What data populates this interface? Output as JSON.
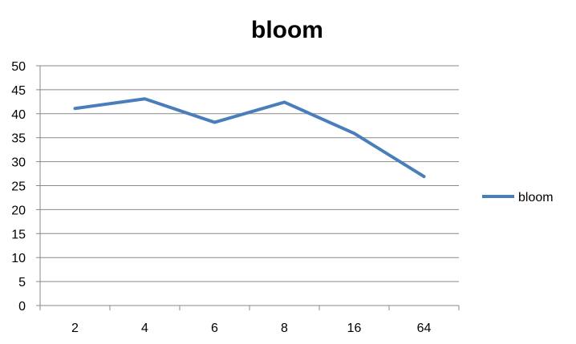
{
  "chart_data": {
    "type": "line",
    "title": "bloom",
    "xlabel": "",
    "ylabel": "",
    "categories": [
      "2",
      "4",
      "6",
      "8",
      "16",
      "64"
    ],
    "series": [
      {
        "name": "bloom",
        "values": [
          41.1,
          43.1,
          38.2,
          42.4,
          35.9,
          26.9
        ],
        "color": "#4a7ebb"
      }
    ],
    "ylim": [
      0,
      50
    ],
    "yticks": [
      "0",
      "5",
      "10",
      "15",
      "20",
      "25",
      "30",
      "35",
      "40",
      "45",
      "50"
    ],
    "grid": true,
    "legend": "right"
  }
}
